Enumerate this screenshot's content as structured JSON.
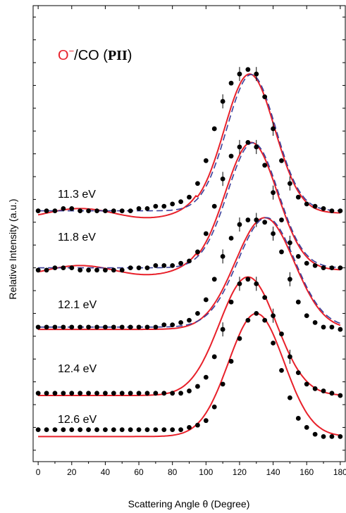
{
  "chart_data": {
    "type": "line",
    "title": "",
    "annotation": {
      "species_text": "/CO (",
      "species_colored": "O",
      "species_sup": "−",
      "state": "PII",
      "close": ")"
    },
    "xlabel": "Scattering Angle θ (Degree)",
    "ylabel": "Relative Intensity (a.u.)",
    "xlim": [
      -3,
      183
    ],
    "xticks": [
      0,
      20,
      40,
      60,
      80,
      100,
      120,
      140,
      160,
      180
    ],
    "xtick_labels": [
      "0",
      "20",
      "40",
      "60",
      "80",
      "100",
      "120",
      "140",
      "160",
      "180"
    ],
    "grid": false,
    "colors": {
      "fit_solid": "#e8202a",
      "fit_dashed": "#3a3f9a",
      "points": "#000000",
      "axis": "#000000"
    },
    "series": [
      {
        "name": "11.3 eV",
        "baseline": 0.55,
        "solid_amp": 2.7,
        "center": 130,
        "width": 16.5,
        "has_dashed": false,
        "has_error_bars": false,
        "points_x": [
          0,
          5,
          10,
          15,
          20,
          25,
          30,
          35,
          40,
          45,
          50,
          55,
          60,
          65,
          70,
          75,
          80,
          85,
          90,
          95,
          100,
          105,
          110,
          115,
          120,
          125,
          130,
          135,
          140,
          145,
          150,
          155,
          160,
          165,
          170,
          175,
          180
        ],
        "points_y": [
          0.7,
          0.7,
          0.7,
          0.7,
          0.7,
          0.7,
          0.7,
          0.7,
          0.7,
          0.7,
          0.7,
          0.7,
          0.7,
          0.7,
          0.7,
          0.7,
          0.7,
          0.7,
          0.75,
          0.8,
          0.9,
          1.2,
          1.7,
          2.2,
          2.7,
          3.1,
          3.25,
          3.1,
          2.6,
          2.0,
          1.4,
          0.95,
          0.75,
          0.6,
          0.55,
          0.55,
          0.55
        ]
      },
      {
        "name": "11.8 eV",
        "baseline": 1.45,
        "solid_amp": 2.6,
        "center": 125,
        "width": 17,
        "has_dashed": false,
        "has_error_bars": true,
        "points_x": [
          0,
          5,
          10,
          15,
          20,
          25,
          30,
          35,
          40,
          45,
          50,
          55,
          60,
          65,
          70,
          75,
          80,
          85,
          90,
          95,
          100,
          105,
          110,
          115,
          120,
          125,
          130,
          135,
          140,
          145,
          150,
          155,
          160,
          165,
          170,
          175,
          180
        ],
        "points_y": [
          1.5,
          1.5,
          1.5,
          1.5,
          1.5,
          1.5,
          1.5,
          1.5,
          1.5,
          1.5,
          1.5,
          1.5,
          1.5,
          1.5,
          1.5,
          1.5,
          1.5,
          1.5,
          1.55,
          1.65,
          1.85,
          2.3,
          2.9,
          3.5,
          3.9,
          4.0,
          3.9,
          3.6,
          3.2,
          2.8,
          2.3,
          1.95,
          1.7,
          1.6,
          1.55,
          1.5,
          1.45
        ]
      },
      {
        "name": "12.1 eV",
        "baseline": 2.9,
        "solid_amp": 2.45,
        "center": 135,
        "width": 17.5,
        "has_dashed": true,
        "has_error_bars": true,
        "points_x": [
          0,
          5,
          10,
          15,
          20,
          25,
          30,
          35,
          40,
          45,
          50,
          55,
          60,
          65,
          70,
          75,
          80,
          85,
          90,
          95,
          100,
          105,
          110,
          115,
          120,
          125,
          130,
          135,
          140,
          145,
          150,
          155,
          160,
          165,
          170,
          175,
          180
        ],
        "points_y": [
          2.95,
          2.95,
          2.95,
          2.95,
          2.95,
          2.95,
          2.95,
          2.95,
          2.95,
          2.95,
          2.95,
          2.95,
          2.95,
          2.95,
          2.95,
          3.0,
          3.0,
          3.05,
          3.1,
          3.25,
          3.55,
          4.0,
          4.5,
          4.9,
          5.2,
          5.3,
          5.3,
          5.25,
          5.0,
          4.6,
          4.0,
          3.5,
          3.2,
          3.05,
          2.95,
          2.95,
          2.9
        ]
      },
      {
        "name": "12.4 eV",
        "baseline": 4.2,
        "solid_amp": 2.8,
        "center": 127,
        "width": 15.5,
        "has_dashed": true,
        "has_error_bars": true,
        "ripple": 0.1,
        "points_x": [
          0,
          5,
          10,
          15,
          20,
          25,
          30,
          35,
          40,
          45,
          50,
          55,
          60,
          65,
          70,
          75,
          80,
          85,
          90,
          95,
          100,
          105,
          110,
          115,
          120,
          125,
          130,
          135,
          140,
          145,
          150,
          155,
          160,
          165,
          170,
          175,
          180
        ],
        "points_y": [
          4.2,
          4.2,
          4.25,
          4.25,
          4.25,
          4.2,
          4.2,
          4.2,
          4.2,
          4.2,
          4.2,
          4.25,
          4.25,
          4.25,
          4.3,
          4.3,
          4.3,
          4.35,
          4.4,
          4.6,
          5.0,
          5.6,
          6.2,
          6.7,
          6.9,
          7.0,
          6.9,
          6.5,
          5.9,
          5.3,
          4.8,
          4.5,
          4.35,
          4.3,
          4.25,
          4.25,
          4.25
        ]
      },
      {
        "name": "12.6 eV",
        "baseline": 5.45,
        "solid_amp": 3.05,
        "center": 126,
        "width": 15,
        "has_dashed": true,
        "has_error_bars": true,
        "ripple": 0.1,
        "points_x": [
          0,
          5,
          10,
          15,
          20,
          25,
          30,
          35,
          40,
          45,
          50,
          55,
          60,
          65,
          70,
          75,
          80,
          85,
          90,
          95,
          100,
          105,
          110,
          115,
          120,
          125,
          130,
          135,
          140,
          145,
          150,
          155,
          160,
          165,
          170,
          175,
          180
        ],
        "points_y": [
          5.5,
          5.5,
          5.5,
          5.55,
          5.55,
          5.5,
          5.5,
          5.5,
          5.5,
          5.5,
          5.5,
          5.5,
          5.55,
          5.55,
          5.6,
          5.6,
          5.65,
          5.7,
          5.8,
          6.1,
          6.6,
          7.3,
          7.9,
          8.3,
          8.5,
          8.6,
          8.5,
          8.0,
          7.3,
          6.6,
          6.1,
          5.8,
          5.65,
          5.6,
          5.55,
          5.5,
          5.5
        ]
      }
    ]
  }
}
